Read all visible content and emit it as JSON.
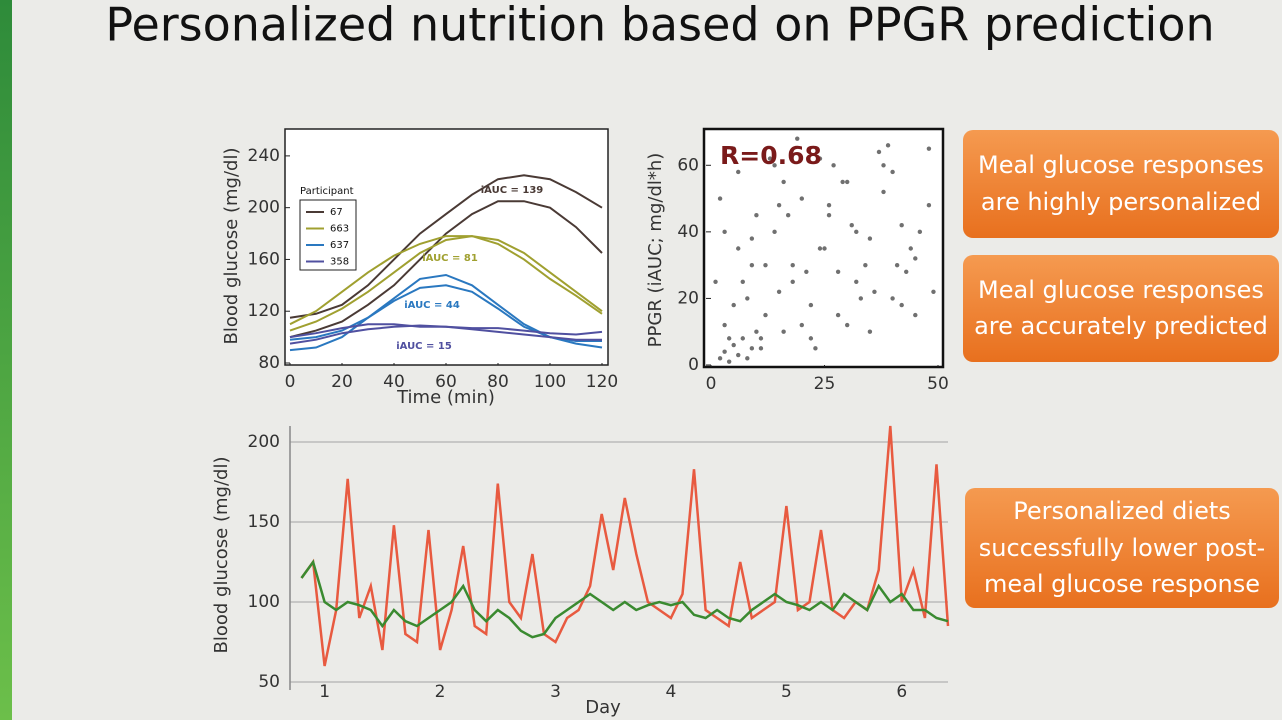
{
  "slide": {
    "title": "Personalized nutrition based on PPGR prediction",
    "callouts": [
      [
        "Meal glucose responses",
        "are highly personalized"
      ],
      [
        "Meal glucose responses",
        "are accurately predicted"
      ],
      [
        "Personalized diets",
        "successfully lower post-",
        "meal glucose response"
      ]
    ]
  },
  "chart_data": [
    {
      "type": "line",
      "x_label": "Time (min)",
      "y_label": "Blood glucose (mg/dl)",
      "legend_title": "Participant",
      "legend": "upper left",
      "x": [
        0,
        10,
        20,
        30,
        40,
        50,
        60,
        70,
        80,
        90,
        100,
        110,
        120
      ],
      "xlim": [
        0,
        120
      ],
      "xticks": [
        0,
        20,
        40,
        60,
        80,
        100,
        120
      ],
      "ylim": [
        80,
        260
      ],
      "yticks": [
        80,
        120,
        160,
        200,
        240
      ],
      "series": [
        {
          "name": "67",
          "color": "#4a3a35",
          "runs": [
            {
              "values": [
                115,
                118,
                125,
                140,
                160,
                180,
                195,
                210,
                222,
                225,
                222,
                212,
                200
              ]
            },
            {
              "values": [
                100,
                105,
                112,
                125,
                140,
                160,
                180,
                195,
                205,
                205,
                200,
                185,
                165
              ]
            }
          ]
        },
        {
          "name": "663",
          "color": "#a0a030",
          "runs": [
            {
              "values": [
                110,
                120,
                135,
                150,
                163,
                172,
                178,
                178,
                175,
                165,
                150,
                135,
                120
              ]
            },
            {
              "values": [
                105,
                112,
                122,
                135,
                150,
                165,
                175,
                178,
                172,
                160,
                145,
                132,
                118
              ]
            }
          ]
        },
        {
          "name": "637",
          "color": "#2a78c0",
          "runs": [
            {
              "values": [
                90,
                92,
                100,
                115,
                130,
                145,
                148,
                140,
                125,
                110,
                100,
                95,
                92
              ]
            },
            {
              "values": [
                98,
                100,
                105,
                115,
                128,
                138,
                140,
                135,
                122,
                108,
                100,
                97,
                97
              ]
            }
          ]
        },
        {
          "name": "358",
          "color": "#5050a0",
          "runs": [
            {
              "values": [
                100,
                103,
                107,
                110,
                110,
                108,
                108,
                107,
                107,
                105,
                103,
                102,
                104
              ]
            },
            {
              "values": [
                95,
                98,
                103,
                106,
                108,
                109,
                108,
                106,
                104,
                102,
                100,
                98,
                98
              ]
            }
          ]
        }
      ],
      "annotations": [
        "iAUC = 139",
        "iAUC = 81",
        "iAUC = 44",
        "iAUC = 15"
      ]
    },
    {
      "type": "scatter",
      "y_label": "PPGR  (iAUC; mg/dl*h)",
      "annotation": "R=0.68",
      "color": "#333333",
      "xlim": [
        0,
        50
      ],
      "xticks": [
        0,
        25,
        50
      ],
      "ylim": [
        0,
        70
      ],
      "yticks": [
        0,
        20,
        40,
        60
      ],
      "x": [
        2,
        3,
        4,
        5,
        6,
        7,
        8,
        9,
        10,
        3,
        5,
        7,
        9,
        11,
        12,
        14,
        15,
        16,
        18,
        20,
        22,
        24,
        26,
        28,
        30,
        32,
        35,
        38,
        40,
        42,
        45,
        48,
        4,
        8,
        12,
        16,
        20,
        24,
        28,
        32,
        36,
        40,
        44,
        48,
        6,
        10,
        14,
        18,
        22,
        26,
        30,
        34,
        38,
        42,
        46,
        2,
        5,
        9,
        13,
        17,
        21,
        25,
        29,
        33,
        37,
        41,
        45,
        49,
        1,
        3,
        6,
        11,
        15,
        19,
        23,
        27,
        31,
        35,
        39,
        43
      ],
      "y": [
        2,
        4,
        1,
        6,
        3,
        8,
        2,
        5,
        10,
        12,
        18,
        25,
        30,
        8,
        15,
        40,
        22,
        10,
        30,
        50,
        18,
        35,
        45,
        28,
        55,
        25,
        38,
        60,
        20,
        42,
        32,
        48,
        8,
        20,
        30,
        55,
        12,
        62,
        15,
        40,
        22,
        58,
        35,
        65,
        35,
        45,
        60,
        25,
        8,
        48,
        12,
        30,
        52,
        18,
        40,
        50,
        65,
        38,
        62,
        45,
        28,
        35,
        55,
        20,
        64,
        30,
        15,
        22,
        25,
        40,
        58,
        5,
        48,
        68,
        5,
        60,
        42,
        10,
        66,
        28
      ]
    },
    {
      "type": "line",
      "x_label": "Day",
      "y_label": "Blood glucose (mg/dl)",
      "grid": true,
      "x": [
        0.8,
        0.9,
        1.0,
        1.1,
        1.2,
        1.3,
        1.4,
        1.5,
        1.6,
        1.7,
        1.8,
        1.9,
        2.0,
        2.1,
        2.2,
        2.3,
        2.4,
        2.5,
        2.6,
        2.7,
        2.8,
        2.9,
        3.0,
        3.1,
        3.2,
        3.3,
        3.4,
        3.5,
        3.6,
        3.7,
        3.8,
        3.9,
        4.0,
        4.1,
        4.2,
        4.3,
        4.4,
        4.5,
        4.6,
        4.7,
        4.8,
        4.9,
        5.0,
        5.1,
        5.2,
        5.3,
        5.4,
        5.5,
        5.6,
        5.7,
        5.8,
        5.9,
        6.0,
        6.1,
        6.2,
        6.3,
        6.4
      ],
      "xlim": [
        0.7,
        6.4
      ],
      "xticks": [
        1,
        2,
        3,
        4,
        5,
        6
      ],
      "ylim": [
        50,
        210
      ],
      "yticks": [
        50,
        100,
        150,
        200
      ],
      "series": [
        {
          "color": "#e85a40",
          "runs": [
            {
              "values": [
                115,
                125,
                60,
                95,
                177,
                90,
                110,
                70,
                148,
                80,
                75,
                145,
                70,
                95,
                135,
                85,
                80,
                174,
                100,
                90,
                130,
                80,
                75,
                90,
                95,
                110,
                155,
                120,
                165,
                130,
                100,
                95,
                90,
                105,
                183,
                95,
                90,
                85,
                125,
                90,
                95,
                100,
                160,
                95,
                100,
                145,
                95,
                90,
                100,
                95,
                120,
                210,
                100,
                120,
                90,
                186,
                85
              ]
            }
          ]
        },
        {
          "color": "#3a8a30",
          "runs": [
            {
              "values": [
                115,
                125,
                100,
                95,
                100,
                98,
                95,
                85,
                95,
                88,
                85,
                90,
                95,
                100,
                110,
                95,
                88,
                95,
                90,
                82,
                78,
                80,
                90,
                95,
                100,
                105,
                100,
                95,
                100,
                95,
                98,
                100,
                98,
                100,
                92,
                90,
                95,
                90,
                88,
                95,
                100,
                105,
                100,
                98,
                95,
                100,
                95,
                105,
                100,
                95,
                110,
                100,
                105,
                95,
                95,
                90,
                88
              ]
            }
          ]
        }
      ]
    }
  ]
}
